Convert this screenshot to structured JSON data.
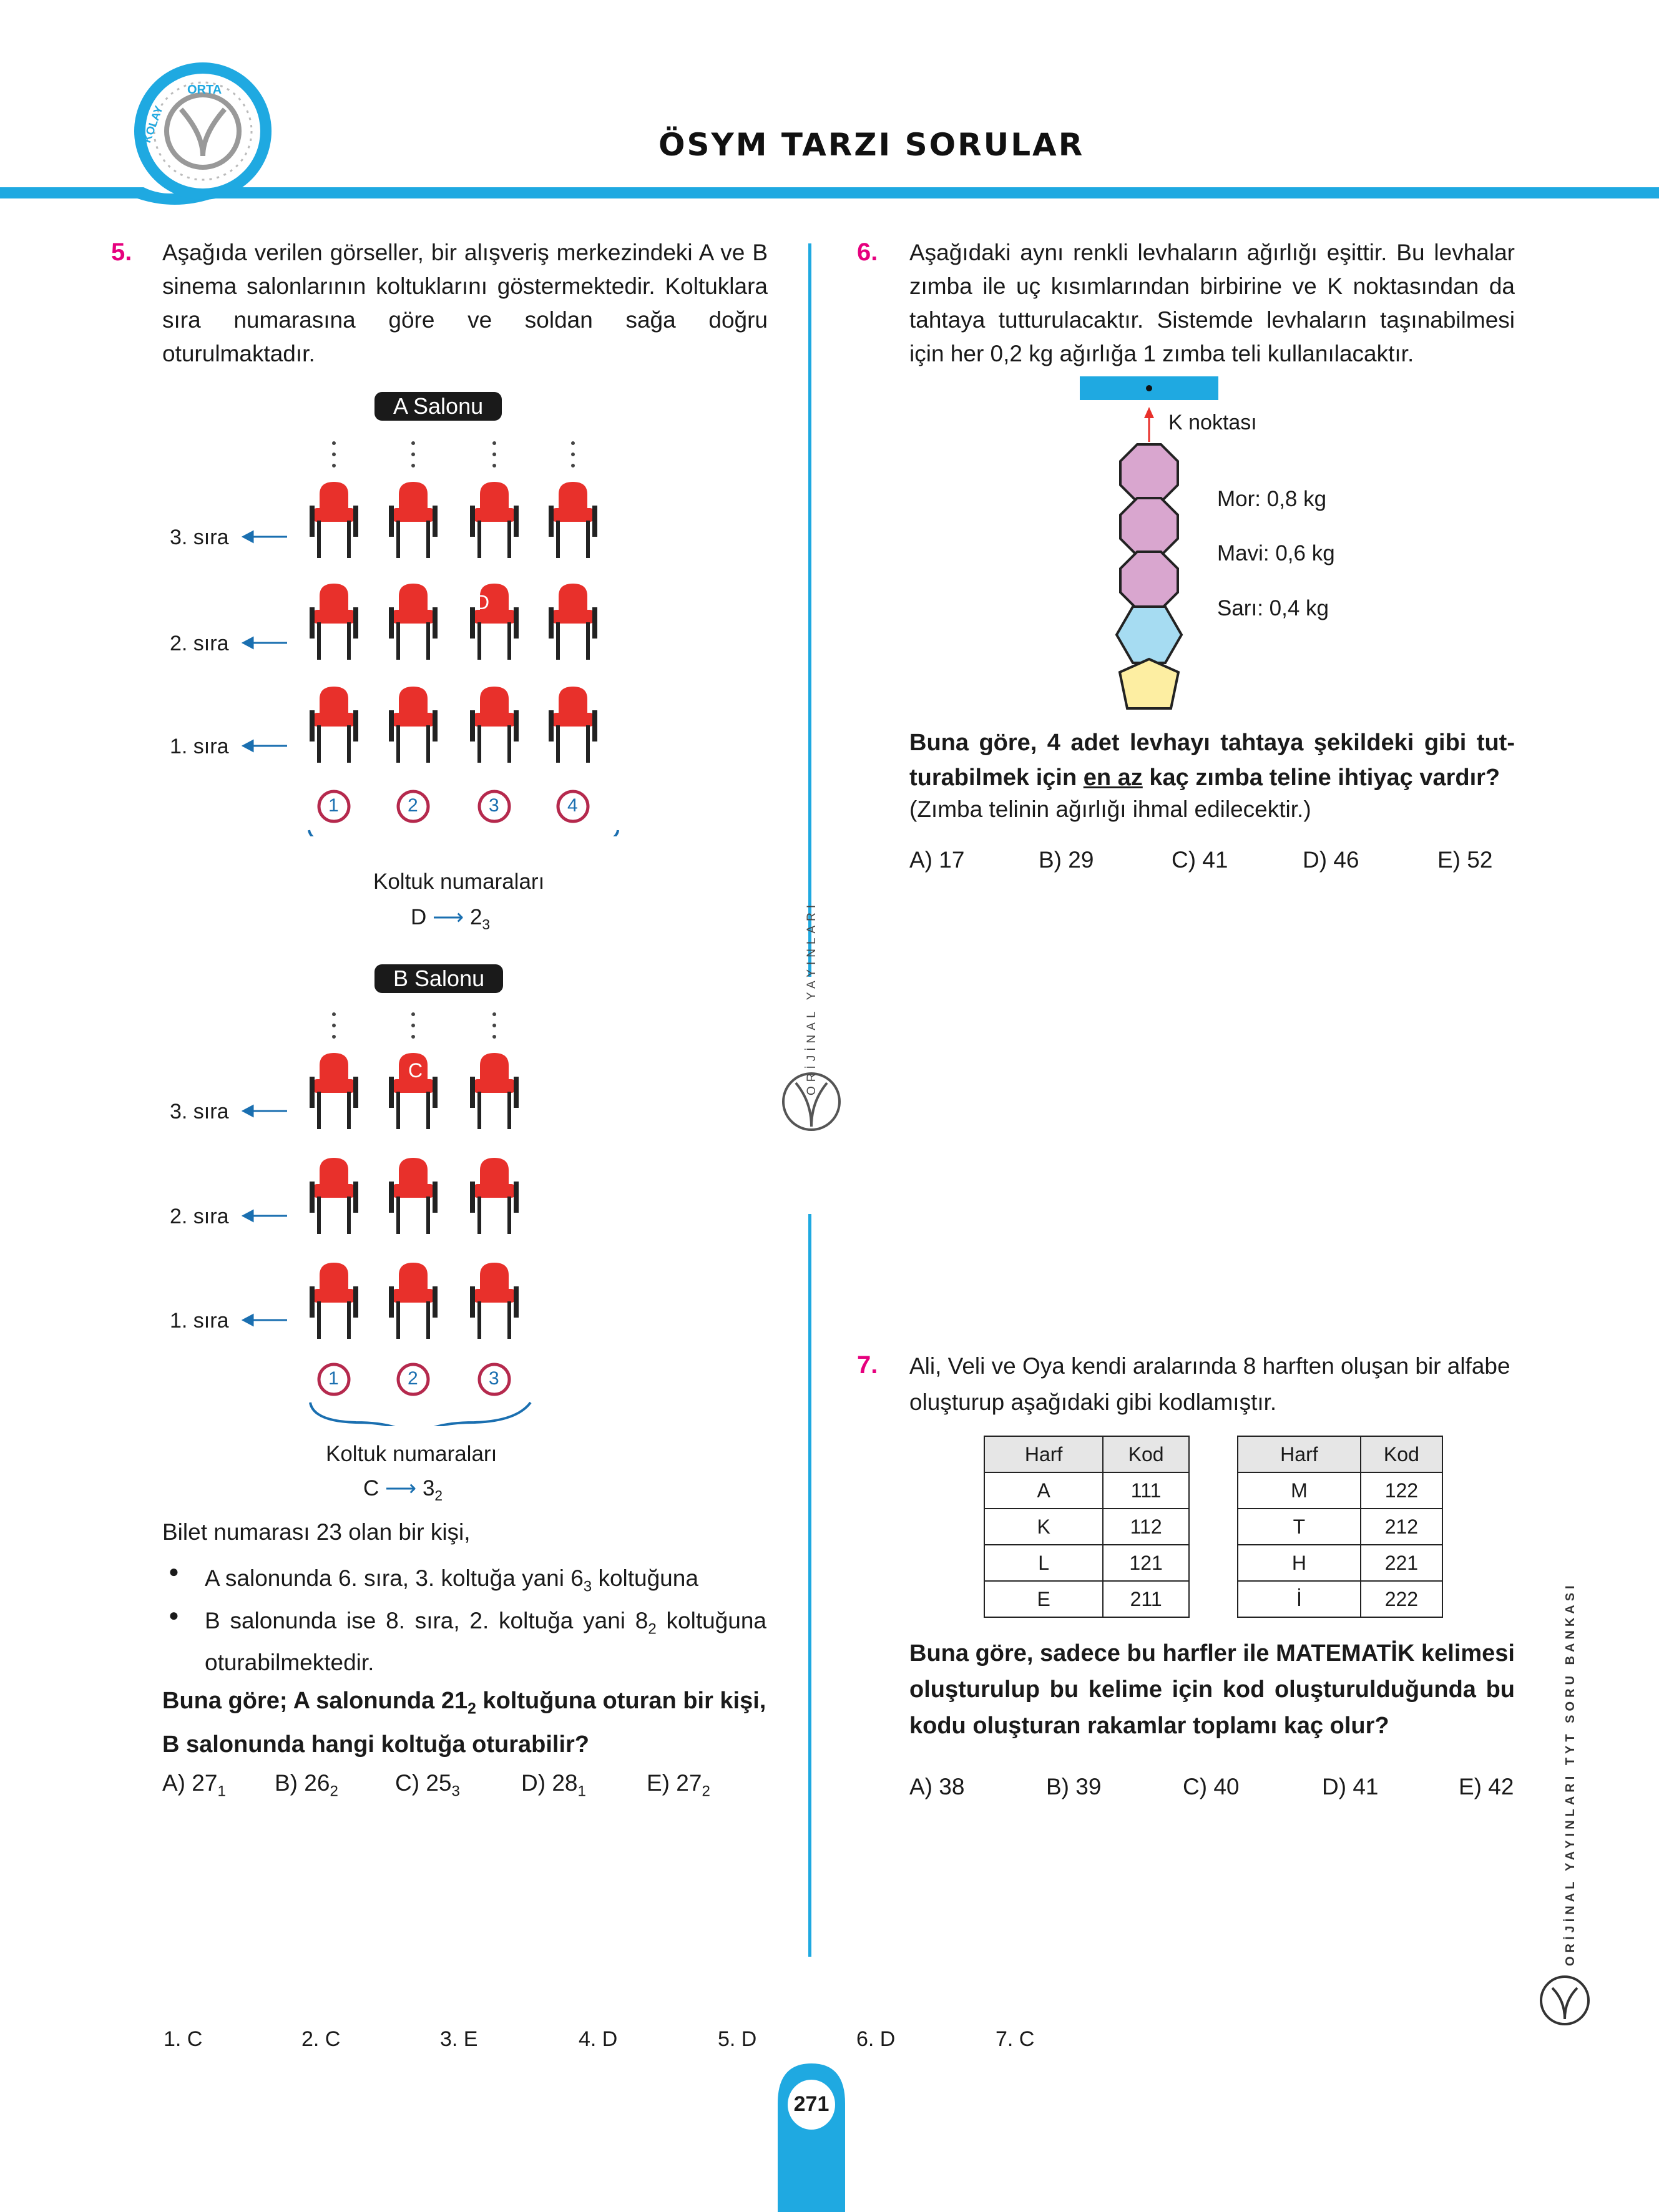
{
  "header": {
    "title": "ÖSYM TARZI SORULAR",
    "badge": {
      "top": "ORTA",
      "left": "KOLAY"
    }
  },
  "sidebar": {
    "brand_vertical": "ORİJİNAL YAYINLARI",
    "side_text": "ORİJİNAL YAYINLARI TYT SORU BANKASI"
  },
  "q5": {
    "number": "5.",
    "text": "Aşağıda verilen görseller, bir alışveriş merkezindeki A ve B sinema salonlarının koltuklarını göstermektedir. Koltuklara sıra numarasına göre ve soldan sağa doğru oturulmaktadır.",
    "salonA": {
      "label": "A Salonu",
      "rows": [
        "3. sıra",
        "2. sıra",
        "1. sıra"
      ],
      "seat_numbers": [
        "1",
        "2",
        "3",
        "4"
      ],
      "marked": "D",
      "caption": "Koltuk numaraları",
      "code_letter": "D",
      "code_value": "2",
      "code_sub": "3"
    },
    "salonB": {
      "label": "B Salonu",
      "rows": [
        "3. sıra",
        "2. sıra",
        "1. sıra"
      ],
      "seat_numbers": [
        "1",
        "2",
        "3"
      ],
      "marked": "C",
      "caption": "Koltuk numaraları",
      "code_letter": "C",
      "code_value": "3",
      "code_sub": "2"
    },
    "intro": "Bilet numarası 23 olan bir kişi,",
    "bullet1": {
      "pre": "A salonunda 6. sıra, 3. koltuğa yani 6",
      "sub": "3",
      "post": " koltuğuna"
    },
    "bullet2": {
      "pre": "B salonunda ise 8. sıra, 2. koltuğa yani 8",
      "sub": "2",
      "post": " koltuğuna oturabilmektedir."
    },
    "question_pre": "Buna göre; A salonunda 21",
    "question_sub": "2",
    "question_post": " koltuğuna oturan bir kişi, B salonunda hangi koltuğa oturabilir?",
    "options": [
      {
        "label": "A) 27",
        "sub": "1"
      },
      {
        "label": "B) 26",
        "sub": "2"
      },
      {
        "label": "C) 25",
        "sub": "3"
      },
      {
        "label": "D) 28",
        "sub": "1"
      },
      {
        "label": "E) 27",
        "sub": "2"
      }
    ]
  },
  "q6": {
    "number": "6.",
    "text": "Aşağıdaki aynı renkli levhaların ağırlığı eşittir. Bu levhalar zımba ile uç kısımlarından birbirine ve K noktasından da tahtaya tutturulacaktır. Sistemde levhaların taşınabilmesi için her 0,2 kg ağırlığa 1 zımba teli kullanılacaktır.",
    "k_label": "K noktası",
    "weights": [
      "Mor: 0,8 kg",
      "Mavi: 0,6 kg",
      "Sarı: 0,4 kg"
    ],
    "question_a": "Buna göre, 4 adet levhayı tahtaya şekildeki gibi tut-turabilmek için ",
    "question_u": "en az",
    "question_b": " kaç zımba teline ihtiyaç vardır?",
    "note": "(Zımba telinin ağırlığı ihmal edilecektir.)",
    "options": [
      "A) 17",
      "B) 29",
      "C) 41",
      "D) 46",
      "E) 52"
    ],
    "colors": {
      "mor": "#d9a6cf",
      "mavi": "#a6dcf2",
      "sari": "#fdeea2"
    }
  },
  "q7": {
    "number": "7.",
    "text": "Ali, Veli ve Oya kendi aralarında 8 harften oluşan bir alfabe oluşturup aşağıdaki gibi kodlamıştır.",
    "table_headers": [
      "Harf",
      "Kod"
    ],
    "table1": [
      [
        "A",
        "111"
      ],
      [
        "K",
        "112"
      ],
      [
        "L",
        "121"
      ],
      [
        "E",
        "211"
      ]
    ],
    "table2": [
      [
        "M",
        "122"
      ],
      [
        "T",
        "212"
      ],
      [
        "H",
        "221"
      ],
      [
        "İ",
        "222"
      ]
    ],
    "question": "Buna göre, sadece bu harfler ile MATEMATİK kelimesi oluşturulup bu kelime için kod oluşturulduğunda bu kodu oluşturan rakamlar toplamı kaç olur?",
    "options": [
      "A) 38",
      "B) 39",
      "C) 40",
      "D) 41",
      "E) 42"
    ]
  },
  "answers": [
    "1. C",
    "2. C",
    "3. E",
    "4. D",
    "5. D",
    "6. D",
    "7. C"
  ],
  "page_number": "271",
  "colors": {
    "accent_blue": "#1fa9e1",
    "magenta": "#e6007e",
    "seat_red": "#e8302b"
  }
}
